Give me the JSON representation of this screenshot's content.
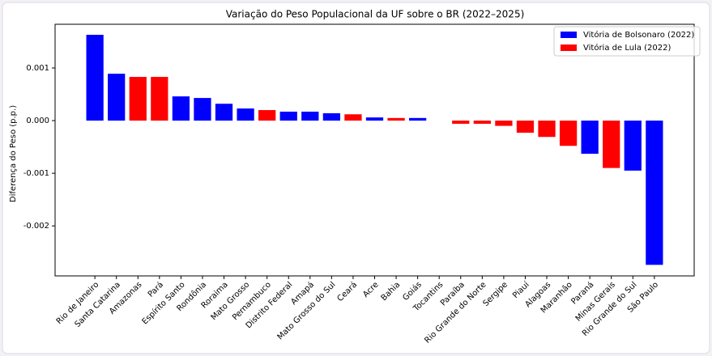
{
  "chart_data": {
    "type": "bar",
    "title": "Variação do Peso Populacional da UF sobre o BR (2022–2025)",
    "y_label": "Diferença do Peso (p.p.)",
    "categories": [
      "Rio de Janeiro",
      "Santa Catarina",
      "Amazonas",
      "Pará",
      "Espírito Santo",
      "Rondônia",
      "Roraima",
      "Mato Grosso",
      "Pernambuco",
      "Distrito Federal",
      "Amapá",
      "Mato Grosso do Sul",
      "Ceará",
      "Acre",
      "Bahia",
      "Goiás",
      "Tocantins",
      "Paraíba",
      "Rio Grande do Norte",
      "Sergipe",
      "Piauí",
      "Alagoas",
      "Maranhão",
      "Paraná",
      "Minas Gerais",
      "Rio Grande do Sul",
      "São Paulo"
    ],
    "series": [
      {
        "name": "Vitória de Bolsonaro (2022)",
        "color": "#0000ff",
        "values": [
          0.00163,
          0.00089,
          null,
          null,
          0.00046,
          0.00043,
          0.00032,
          0.00023,
          null,
          0.00017,
          0.00017,
          0.00014,
          null,
          6e-05,
          null,
          5e-05,
          0.0,
          null,
          null,
          null,
          null,
          null,
          null,
          -0.00063,
          null,
          -0.00095,
          -0.00274
        ]
      },
      {
        "name": "Vitória de Lula (2022)",
        "color": "#ff0000",
        "values": [
          null,
          null,
          0.00083,
          0.00083,
          null,
          null,
          null,
          null,
          0.0002,
          null,
          null,
          null,
          0.00012,
          null,
          5e-05,
          null,
          null,
          -6e-05,
          -6e-05,
          -0.0001,
          -0.00023,
          -0.00031,
          -0.00048,
          null,
          -0.0009,
          null,
          null
        ]
      }
    ],
    "ylim": [
      -0.00295,
      0.00183
    ],
    "yticks": [
      -0.002,
      -0.001,
      {
        "value": 0,
        "label": "0.000"
      },
      0.001
    ],
    "legend": "upper right"
  }
}
